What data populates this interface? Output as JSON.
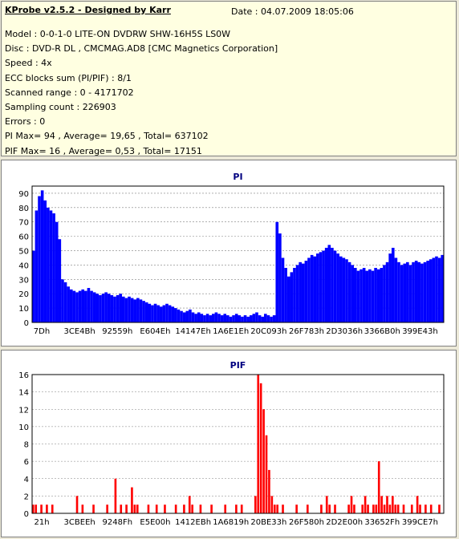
{
  "header": {
    "title": "KProbe v2.5.2 - Designed by Karr",
    "date": "Date : 04.07.2009 18:05:06"
  },
  "info_lines": [
    "Model : 0-0-1-0 LITE-ON DVDRW SHW-16H5S  LS0W",
    "Disc : DVD-R DL , CMCMAG.AD8 [CMC Magnetics Corporation]",
    "Speed : 4x",
    "ECC blocks sum (PI/PIF) : 8/1",
    "Scanned range : 0 - 4171702",
    "Sampling count : 226903",
    "Errors : 0",
    "PI Max= 94 , Average= 19,65 , Total= 637102",
    "PIF Max= 16 , Average= 0,53 , Total= 17151"
  ],
  "colors": {
    "pi_series": "#0000ff",
    "pif_series": "#ff0000",
    "title_color": "#000080",
    "grid": "#808080"
  },
  "chart_data": [
    {
      "type": "area",
      "title": "PI",
      "ylim": [
        0,
        95
      ],
      "yticks": [
        0,
        10,
        20,
        30,
        40,
        50,
        60,
        70,
        80,
        90
      ],
      "xtick_labels": [
        "7Dh",
        "3CE4Bh",
        "92559h",
        "E604Eh",
        "14147Eh",
        "1A6E1Eh",
        "20C093h",
        "26F783h",
        "2D3036h",
        "3366B0h",
        "399E43h"
      ],
      "grid": true,
      "series": [
        {
          "values": [
            50,
            78,
            88,
            92,
            85,
            80,
            78,
            76,
            70,
            58,
            30,
            28,
            25,
            23,
            22,
            21,
            22,
            23,
            22,
            24,
            22,
            21,
            20,
            19,
            20,
            21,
            20,
            19,
            18,
            19,
            20,
            18,
            17,
            18,
            17,
            16,
            17,
            16,
            15,
            14,
            13,
            12,
            13,
            12,
            11,
            12,
            13,
            12,
            11,
            10,
            9,
            8,
            7,
            8,
            9,
            7,
            6,
            7,
            6,
            5,
            6,
            5,
            6,
            7,
            6,
            5,
            6,
            5,
            4,
            5,
            6,
            5,
            4,
            5,
            4,
            5,
            6,
            7,
            5,
            4,
            6,
            5,
            4,
            5,
            70,
            62,
            45,
            38,
            32,
            35,
            38,
            40,
            42,
            41,
            43,
            45,
            47,
            46,
            48,
            49,
            50,
            52,
            54,
            52,
            50,
            48,
            46,
            45,
            44,
            42,
            40,
            38,
            36,
            37,
            38,
            36,
            37,
            36,
            38,
            37,
            38,
            40,
            42,
            48,
            52,
            45,
            42,
            40,
            41,
            42,
            40,
            42,
            43,
            42,
            41,
            42,
            43,
            44,
            45,
            46,
            45,
            47
          ]
        }
      ]
    },
    {
      "type": "bar",
      "title": "PIF",
      "ylim": [
        0,
        16
      ],
      "yticks": [
        0,
        2,
        4,
        6,
        8,
        10,
        12,
        14,
        16
      ],
      "xtick_labels": [
        "21h",
        "3CBEEh",
        "9248Fh",
        "E5E00h",
        "1412EBh",
        "1A6819h",
        "20BE33h",
        "26F580h",
        "2D2E00h",
        "33652Fh",
        "399CE7h"
      ],
      "grid": true,
      "series": [
        {
          "values": [
            1,
            1,
            0,
            1,
            0,
            1,
            0,
            1,
            0,
            0,
            0,
            0,
            0,
            0,
            0,
            0,
            2,
            0,
            1,
            0,
            0,
            0,
            1,
            0,
            0,
            0,
            0,
            1,
            0,
            0,
            4,
            0,
            1,
            0,
            1,
            0,
            3,
            1,
            1,
            0,
            0,
            0,
            1,
            0,
            0,
            1,
            0,
            0,
            1,
            0,
            0,
            0,
            1,
            0,
            0,
            1,
            0,
            2,
            1,
            0,
            0,
            1,
            0,
            0,
            0,
            1,
            0,
            0,
            0,
            0,
            1,
            0,
            0,
            0,
            1,
            0,
            1,
            0,
            0,
            0,
            0,
            2,
            16,
            15,
            12,
            9,
            5,
            2,
            1,
            1,
            0,
            1,
            0,
            0,
            0,
            0,
            1,
            0,
            0,
            0,
            1,
            0,
            0,
            0,
            0,
            1,
            0,
            2,
            1,
            0,
            1,
            0,
            0,
            0,
            0,
            1,
            2,
            1,
            0,
            0,
            1,
            2,
            1,
            0,
            1,
            1,
            6,
            2,
            1,
            2,
            1,
            2,
            1,
            1,
            0,
            1,
            0,
            0,
            1,
            0,
            2,
            1,
            0,
            1,
            0,
            1,
            0,
            0,
            1,
            0
          ]
        }
      ]
    }
  ]
}
